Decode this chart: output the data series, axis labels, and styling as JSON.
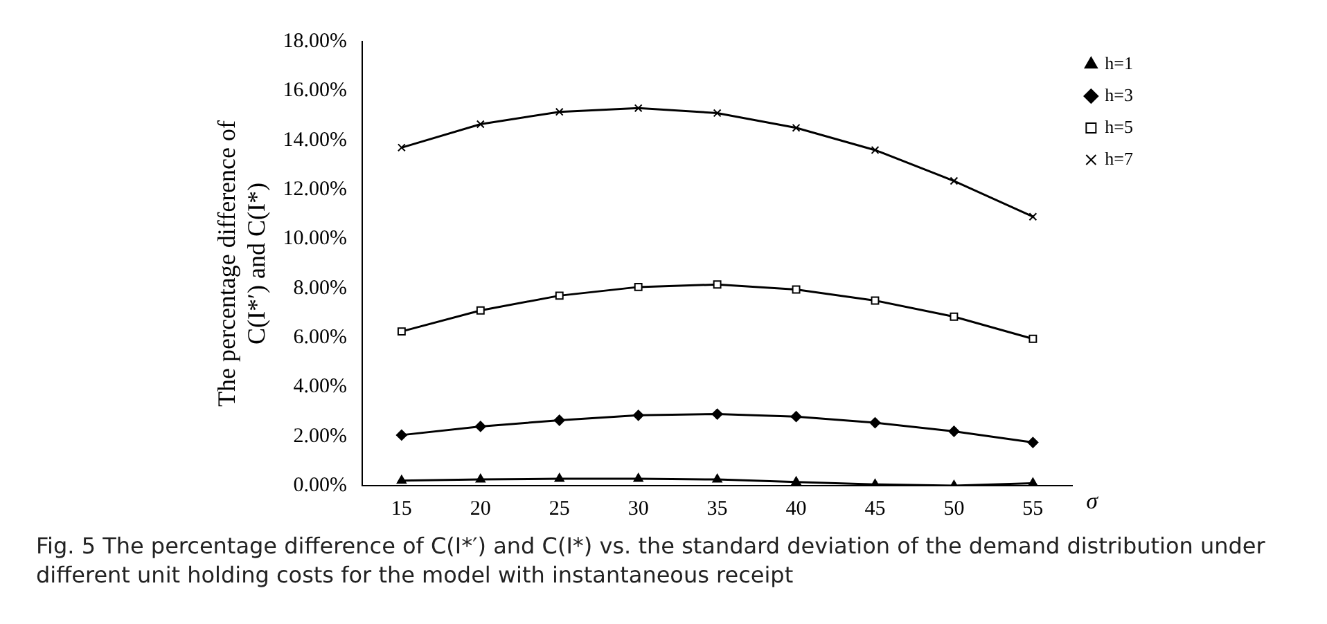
{
  "chart_data": {
    "type": "line",
    "categories": [
      "15",
      "20",
      "25",
      "30",
      "35",
      "40",
      "45",
      "50",
      "55"
    ],
    "xlabel": "σ",
    "ylabel": "The percentage difference of C(I*′) and C(I*)",
    "ylim": [
      0,
      18
    ],
    "yticks": [
      {
        "value": 0,
        "label": "0.00%"
      },
      {
        "value": 2,
        "label": "2.00%"
      },
      {
        "value": 4,
        "label": "4.00%"
      },
      {
        "value": 6,
        "label": "6.00%"
      },
      {
        "value": 8,
        "label": "8.00%"
      },
      {
        "value": 10,
        "label": "10.00%"
      },
      {
        "value": 12,
        "label": "12.00%"
      },
      {
        "value": 14,
        "label": "14.00%"
      },
      {
        "value": 16,
        "label": "16.00%"
      },
      {
        "value": 18,
        "label": "18.00%"
      }
    ],
    "grid": false,
    "legend": "top right",
    "line_style": "solid",
    "series": [
      {
        "name": "h=1",
        "color": "#000000",
        "marker": "triangle",
        "values": [
          0.2,
          0.25,
          0.28,
          0.28,
          0.25,
          0.15,
          0.05,
          0.0,
          0.1
        ]
      },
      {
        "name": "h=3",
        "color": "#000000",
        "marker": "diamond",
        "values": [
          2.05,
          2.4,
          2.65,
          2.85,
          2.9,
          2.8,
          2.55,
          2.2,
          1.75
        ]
      },
      {
        "name": "h=5",
        "color": "#000000",
        "marker": "square",
        "values": [
          6.25,
          7.1,
          7.7,
          8.05,
          8.15,
          7.95,
          7.5,
          6.85,
          5.95
        ]
      },
      {
        "name": "h=7",
        "color": "#000000",
        "marker": "cross",
        "values": [
          13.7,
          14.65,
          15.15,
          15.3,
          15.1,
          14.5,
          13.6,
          12.35,
          10.9
        ]
      }
    ],
    "annotations": [
      "Fig. 5 The percentage difference of C(I*′) and C(I*) vs. the standard deviation of the demand distribution under different unit holding costs for the model with instantaneous receipt"
    ]
  }
}
